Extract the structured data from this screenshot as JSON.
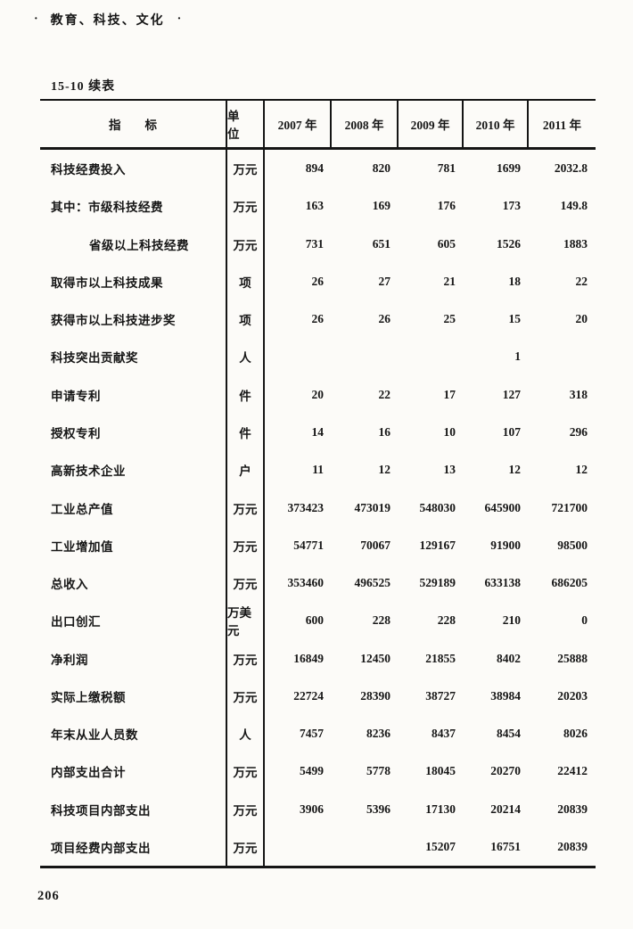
{
  "page": {
    "crumb": {
      "left_dot": "·",
      "text": "教育、科技、文化",
      "right_dot": "·"
    },
    "caption": "15-10  续表",
    "page_number": "206",
    "colors": {
      "paper": "#fcfbf8",
      "ink": "#161616",
      "rule": "#151515"
    }
  },
  "table": {
    "columns": {
      "indicator": "指　　标",
      "unit": "单　位",
      "years": [
        "2007 年",
        "2008 年",
        "2009 年",
        "2010 年",
        "2011 年"
      ]
    },
    "rows": [
      {
        "label": "科技经费投入",
        "indent": false,
        "unit": "万元",
        "values": [
          "894",
          "820",
          "781",
          "1699",
          "2032.8"
        ]
      },
      {
        "label": "其中：市级科技经费",
        "indent": false,
        "unit": "万元",
        "values": [
          "163",
          "169",
          "176",
          "173",
          "149.8"
        ]
      },
      {
        "label": "省级以上科技经费",
        "indent": true,
        "unit": "万元",
        "values": [
          "731",
          "651",
          "605",
          "1526",
          "1883"
        ]
      },
      {
        "label": "取得市以上科技成果",
        "indent": false,
        "unit": "项",
        "values": [
          "26",
          "27",
          "21",
          "18",
          "22"
        ]
      },
      {
        "label": "获得市以上科技进步奖",
        "indent": false,
        "unit": "项",
        "values": [
          "26",
          "26",
          "25",
          "15",
          "20"
        ]
      },
      {
        "label": "科技突出贡献奖",
        "indent": false,
        "unit": "人",
        "values": [
          "",
          "",
          "",
          "1",
          ""
        ]
      },
      {
        "label": "申请专利",
        "indent": false,
        "unit": "件",
        "values": [
          "20",
          "22",
          "17",
          "127",
          "318"
        ]
      },
      {
        "label": "授权专利",
        "indent": false,
        "unit": "件",
        "values": [
          "14",
          "16",
          "10",
          "107",
          "296"
        ]
      },
      {
        "label": "高新技术企业",
        "indent": false,
        "unit": "户",
        "values": [
          "11",
          "12",
          "13",
          "12",
          "12"
        ]
      },
      {
        "label": "工业总产值",
        "indent": false,
        "unit": "万元",
        "values": [
          "373423",
          "473019",
          "548030",
          "645900",
          "721700"
        ]
      },
      {
        "label": "工业增加值",
        "indent": false,
        "unit": "万元",
        "values": [
          "54771",
          "70067",
          "129167",
          "91900",
          "98500"
        ]
      },
      {
        "label": "总收入",
        "indent": false,
        "unit": "万元",
        "values": [
          "353460",
          "496525",
          "529189",
          "633138",
          "686205"
        ]
      },
      {
        "label": "出口创汇",
        "indent": false,
        "unit": "万美元",
        "values": [
          "600",
          "228",
          "228",
          "210",
          "0"
        ]
      },
      {
        "label": "净利润",
        "indent": false,
        "unit": "万元",
        "values": [
          "16849",
          "12450",
          "21855",
          "8402",
          "25888"
        ]
      },
      {
        "label": "实际上缴税额",
        "indent": false,
        "unit": "万元",
        "values": [
          "22724",
          "28390",
          "38727",
          "38984",
          "20203"
        ]
      },
      {
        "label": "年末从业人员数",
        "indent": false,
        "unit": "人",
        "values": [
          "7457",
          "8236",
          "8437",
          "8454",
          "8026"
        ]
      },
      {
        "label": "内部支出合计",
        "indent": false,
        "unit": "万元",
        "values": [
          "5499",
          "5778",
          "18045",
          "20270",
          "22412"
        ]
      },
      {
        "label": "科技项目内部支出",
        "indent": false,
        "unit": "万元",
        "values": [
          "3906",
          "5396",
          "17130",
          "20214",
          "20839"
        ]
      },
      {
        "label": "项目经费内部支出",
        "indent": false,
        "unit": "万元",
        "values": [
          "",
          "",
          "15207",
          "16751",
          "20839"
        ]
      }
    ]
  }
}
